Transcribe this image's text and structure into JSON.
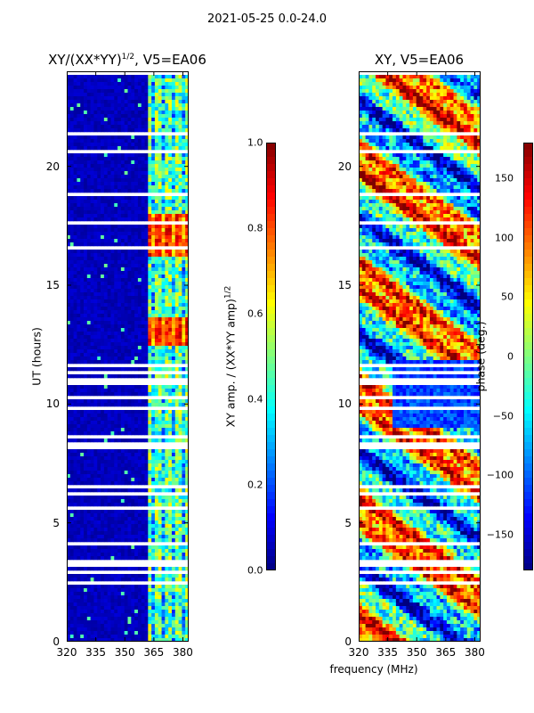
{
  "chart_data": [
    {
      "type": "heatmap",
      "title": "XY/(XX*YY)^1/2, V5=EA06",
      "title_main": "XY/(XX*YY)",
      "title_sup": "1/2",
      "title_rest": ", V5=EA06",
      "xlabel": "",
      "ylabel": "UT (hours)",
      "xlim": [
        320,
        383
      ],
      "ylim": [
        0,
        24
      ],
      "xticks": [
        320,
        335,
        350,
        365,
        380
      ],
      "yticks": [
        0,
        5,
        10,
        15,
        20
      ],
      "colorbar": {
        "label": "XY amp. / (XX*YY amp)^1/2",
        "label_main": "XY amp. / (XX*YY amp)",
        "label_sup": "1/2",
        "range": [
          0.0,
          1.0
        ],
        "ticks": [
          "0.0",
          "0.2",
          "0.4",
          "0.6",
          "0.8",
          "1.0"
        ],
        "colormap": "jet"
      },
      "bright_band_start_mhz": 362,
      "high_value_intervals_hours": [
        [
          12.4,
          13.6
        ],
        [
          16.2,
          18.0
        ]
      ]
    },
    {
      "type": "heatmap",
      "title": "XY, V5=EA06",
      "xlabel": "frequency (MHz)",
      "ylabel": "",
      "xlim": [
        320,
        383
      ],
      "ylim": [
        0,
        24
      ],
      "xticks": [
        320,
        335,
        350,
        365,
        380
      ],
      "yticks": [
        0,
        5,
        10,
        15,
        20
      ],
      "colorbar": {
        "label": "phase (deg.)",
        "range": [
          -180,
          180
        ],
        "ticks": [
          "150",
          "100",
          "50",
          "0",
          "−50",
          "−100",
          "−150"
        ],
        "colormap": "jet"
      }
    }
  ],
  "suptitle": "2021-05-25 0.0-24.0",
  "colors": {
    "jet": [
      "#00007f",
      "#0000ff",
      "#007fff",
      "#00ffff",
      "#7fff7f",
      "#ffff00",
      "#ff7f00",
      "#ff0000",
      "#7f0000"
    ]
  }
}
